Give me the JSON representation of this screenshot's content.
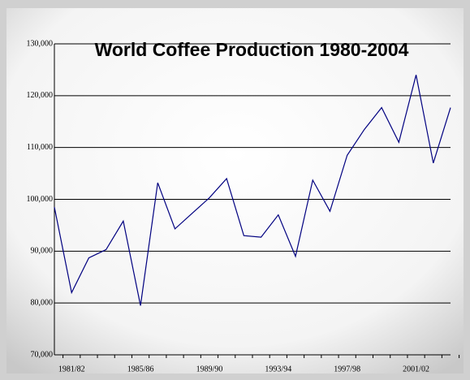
{
  "chart_data": {
    "type": "line",
    "title": "World Coffee Production 1980-2004",
    "categories": [
      null,
      "1981/82",
      null,
      null,
      null,
      "1985/86",
      null,
      null,
      null,
      "1989/90",
      null,
      null,
      null,
      "1993/94",
      null,
      null,
      null,
      "1997/98",
      null,
      null,
      null,
      "2001/02",
      null,
      null
    ],
    "series": [
      {
        "name": "World Coffee Production",
        "color": "#000080",
        "values": [
          98500,
          82000,
          88700,
          90300,
          95800,
          79500,
          103200,
          94300,
          97300,
          100300,
          104000,
          93000,
          92700,
          97000,
          89000,
          103700,
          97700,
          108500,
          113500,
          117700,
          111000,
          124000,
          107000,
          117700
        ]
      }
    ],
    "ylim": [
      70000,
      130000
    ],
    "yticks": [
      {
        "value": 70000,
        "label": "70,000"
      },
      {
        "value": 80000,
        "label": "80,000"
      },
      {
        "value": 90000,
        "label": "90,000"
      },
      {
        "value": 100000,
        "label": "100,000"
      },
      {
        "value": 110000,
        "label": "110,000"
      },
      {
        "value": 120000,
        "label": "120,000"
      },
      {
        "value": 130000,
        "label": "130,000"
      }
    ],
    "grid": true
  }
}
